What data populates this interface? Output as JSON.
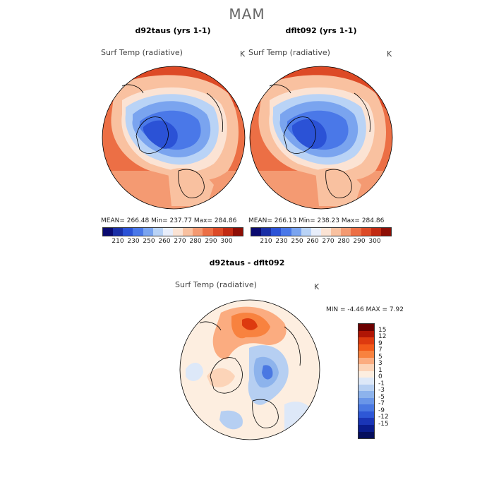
{
  "title": "MAM",
  "panels": [
    {
      "title": "d92taus (yrs 1-1)",
      "variable": "Surf Temp (radiative)",
      "unit": "K",
      "stats": "MEAN= 266.48    Min= 237.77    Max= 284.86"
    },
    {
      "title": "dflt092 (yrs 1-1)",
      "variable": "Surf Temp (radiative)",
      "unit": "K",
      "stats": "MEAN= 266.13    Min= 238.23    Max= 284.86"
    },
    {
      "title": "d92taus - dflt092",
      "variable": "Surf Temp (radiative)",
      "unit": "K",
      "stats": "MIN =   -4.46  MAX =    7.92"
    }
  ],
  "top_colorbar": {
    "colors": [
      "#0a0a70",
      "#1a2fa6",
      "#2b52d6",
      "#4a78e8",
      "#7aa4ef",
      "#b9d3f6",
      "#e8eefb",
      "#fbe3d4",
      "#f9c1a0",
      "#f49a72",
      "#ec6f45",
      "#dd4a26",
      "#c22a12",
      "#8e0e05"
    ],
    "labels": [
      "210",
      "230",
      "250",
      "260",
      "270",
      "280",
      "290",
      "300"
    ]
  },
  "diff_colorbar": {
    "colors": [
      "#6b0000",
      "#b01505",
      "#dd3a0f",
      "#f25a1a",
      "#f8823f",
      "#fbac80",
      "#fcd4b8",
      "#fdeee0",
      "#dde8f8",
      "#b6cff2",
      "#8db3ec",
      "#6a96e8",
      "#4a78e2",
      "#2e57d6",
      "#1a35b6",
      "#0a1c8c",
      "#050e5c"
    ],
    "labels": [
      "15",
      "12",
      "9",
      "7",
      "5",
      "3",
      "1",
      "0",
      "-1",
      "-3",
      "-5",
      "-7",
      "-9",
      "-12",
      "-15"
    ]
  },
  "icons": {
    "maps": "polar-stereographic-map-icon"
  }
}
